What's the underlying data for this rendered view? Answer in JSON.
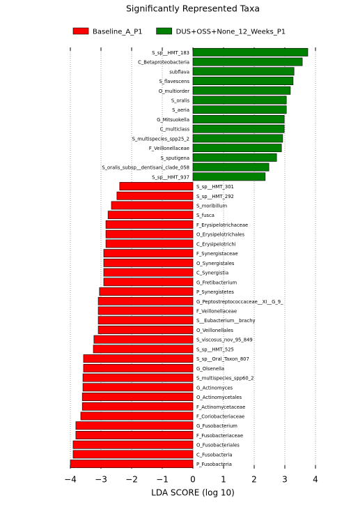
{
  "chart_data": {
    "type": "hbar",
    "title": "Significantly Represented Taxa",
    "xlabel": "LDA SCORE (log 10)",
    "categories": [
      "S_sp__HMT_183",
      "C_Betaproteobacteria",
      "subflava",
      "S_flavescens",
      "O_multiorder",
      "S_oralis",
      "S_aeria",
      "G_Mitsuokella",
      "C_multiclass",
      "S_multispecies_spp25_2",
      "F_Veillonellaceae",
      "S_sputigena",
      "S_oralis_subsp__dentisani_clade_058",
      "S_sp__HMT_937",
      "S_sp__HMT_301",
      "S_sp__HMT_292",
      "S_moribillum",
      "S_fusca",
      "F_Erysipelotrichaceae",
      "O_Erysipelotrichales",
      "C_Erysipelotrichi",
      "F_Synergistaceae",
      "O_Synergistales",
      "C_Synergistia",
      "G_Fretibacterium",
      "P_Synergistetes",
      "G_Peptostreptococcaceae__XI__G_9_",
      "F_Veillonellaceae",
      "S__Eubacterium__brachy",
      "O_Veillonellales",
      "S_viscosus_nov_95_849",
      "S_sp__HMT_525",
      "S_sp__Oral_Taxon_807",
      "G_Olsenella",
      "S_multispecies_spp60_2",
      "G_Actinomyces",
      "O_Actinomycetales",
      "F_Actinomycetaceae",
      "F_Coriobacteriaceae",
      "G_Fusobacterium",
      "F_Fusobacteriaceae",
      "O_Fusobacteriales",
      "C_Fusobacteria",
      "P_Fusobacteria"
    ],
    "series": [
      {
        "name": "Baseline_A_P1",
        "color": "#ff0000",
        "values": [
          null,
          null,
          null,
          null,
          null,
          null,
          null,
          null,
          null,
          null,
          null,
          null,
          null,
          null,
          -2.39,
          -2.48,
          -2.66,
          -2.77,
          -2.84,
          -2.84,
          -2.84,
          -2.91,
          -2.91,
          -2.91,
          -2.91,
          -3.05,
          -3.09,
          -3.09,
          -3.09,
          -3.09,
          -3.23,
          -3.25,
          -3.57,
          -3.57,
          -3.59,
          -3.59,
          -3.61,
          -3.61,
          -3.66,
          -3.82,
          -3.82,
          -3.91,
          -3.91,
          -4.0
        ]
      },
      {
        "name": "DUS+OSS+None_12_Weeks_P1",
        "color": "#008000",
        "values": [
          3.75,
          3.57,
          3.3,
          3.27,
          3.18,
          3.05,
          3.05,
          2.98,
          2.98,
          2.93,
          2.89,
          2.73,
          2.48,
          2.36,
          null,
          null,
          null,
          null,
          null,
          null,
          null,
          null,
          null,
          null,
          null,
          null,
          null,
          null,
          null,
          null,
          null,
          null,
          null,
          null,
          null,
          null,
          null,
          null,
          null,
          null,
          null,
          null,
          null,
          null
        ]
      }
    ],
    "xlim": [
      -4,
      4
    ],
    "xticks": [
      {
        "value": -4,
        "label": "−4"
      },
      {
        "value": -3,
        "label": "−3"
      },
      {
        "value": -2,
        "label": "−2"
      },
      {
        "value": -1,
        "label": "−1"
      },
      0,
      1,
      2,
      3,
      4
    ],
    "grid": true
  }
}
